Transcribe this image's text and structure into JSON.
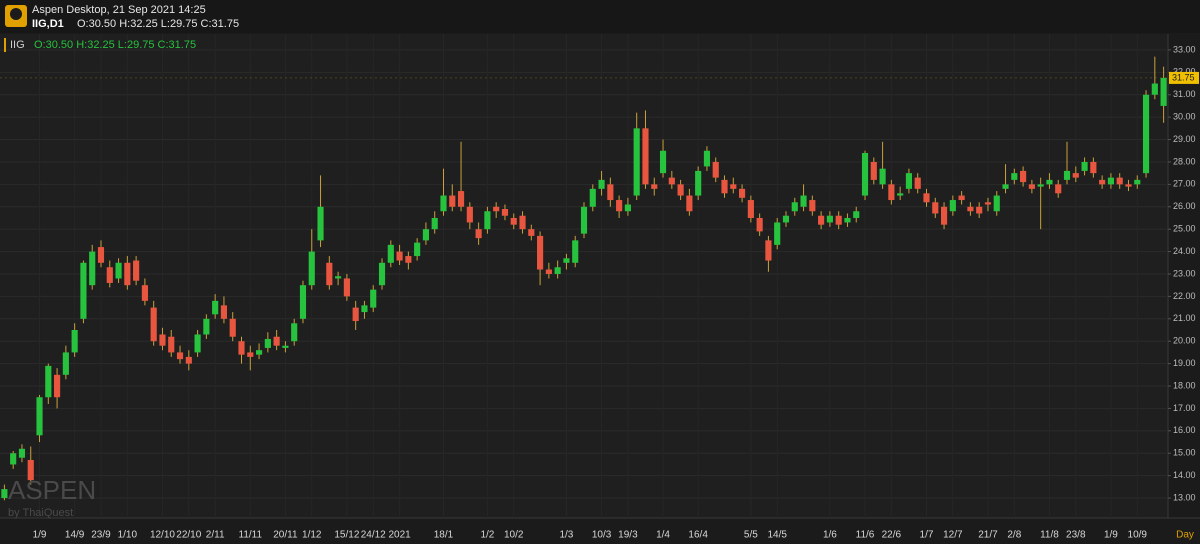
{
  "header": {
    "app_title": "Aspen Desktop, 21 Sep 2021 14:25",
    "symbol": "IIG,D1",
    "ohlc": "O:30.50 H:32.25 L:29.75 C:31.75"
  },
  "watermark": {
    "title": "ASPEN",
    "subtitle": "by ThaiQuest"
  },
  "chart_data": {
    "type": "candlestick",
    "title": "IIG",
    "subtitle": "O:30.50 H:32.25 L:29.75 C:31.75",
    "x_label": "Day",
    "up_color": "#27c23e",
    "down_color": "#e8563f",
    "wick_color": "#c9a23a",
    "grid": true,
    "ylim": [
      12.11,
      33.71
    ],
    "yticks": [
      {
        "value": 13,
        "label": "13.00"
      },
      {
        "value": 14,
        "label": "14.00"
      },
      {
        "value": 15,
        "label": "15.00"
      },
      {
        "value": 16,
        "label": "16.00"
      },
      {
        "value": 17,
        "label": "17.00"
      },
      {
        "value": 18,
        "label": "18.00"
      },
      {
        "value": 19,
        "label": "19.00"
      },
      {
        "value": 20,
        "label": "20.00"
      },
      {
        "value": 21,
        "label": "21.00"
      },
      {
        "value": 22,
        "label": "22.00"
      },
      {
        "value": 23,
        "label": "23.00"
      },
      {
        "value": 24,
        "label": "24.00"
      },
      {
        "value": 25,
        "label": "25.00"
      },
      {
        "value": 26,
        "label": "26.00"
      },
      {
        "value": 27,
        "label": "27.00"
      },
      {
        "value": 28,
        "label": "28.00"
      },
      {
        "value": 29,
        "label": "29.00"
      },
      {
        "value": 30,
        "label": "30.00"
      },
      {
        "value": 31,
        "label": "31.00"
      },
      {
        "value": 32,
        "label": "32.00"
      },
      {
        "value": 33,
        "label": "33.00"
      }
    ],
    "current_price": {
      "value": 31.75,
      "label": "31.75"
    },
    "categories": [
      null,
      null,
      null,
      null,
      "1/9",
      null,
      null,
      null,
      "14/9",
      null,
      null,
      "23/9",
      null,
      null,
      "1/10",
      null,
      null,
      null,
      "12/10",
      null,
      null,
      "22/10",
      null,
      null,
      "2/11",
      null,
      null,
      null,
      "11/11",
      null,
      null,
      null,
      "20/11",
      null,
      null,
      "1/12",
      null,
      null,
      null,
      "15/12",
      null,
      null,
      "24/12",
      null,
      null,
      "2021",
      null,
      null,
      null,
      null,
      "18/1",
      null,
      null,
      null,
      null,
      "1/2",
      null,
      null,
      "10/2",
      null,
      null,
      null,
      null,
      null,
      "1/3",
      null,
      null,
      null,
      "10/3",
      null,
      null,
      "19/3",
      null,
      null,
      null,
      "1/4",
      null,
      null,
      null,
      "16/4",
      null,
      null,
      null,
      null,
      null,
      "5/5",
      null,
      null,
      "14/5",
      null,
      null,
      null,
      null,
      null,
      "1/6",
      null,
      null,
      null,
      "11/6",
      null,
      null,
      "22/6",
      null,
      null,
      null,
      "1/7",
      null,
      null,
      "12/7",
      null,
      null,
      null,
      "21/7",
      null,
      null,
      "2/8",
      null,
      null,
      null,
      "11/8",
      null,
      null,
      "23/8",
      null,
      null,
      null,
      "1/9",
      null,
      null,
      "10/9",
      null,
      null,
      null
    ],
    "open": [
      13.0,
      14.5,
      14.8,
      14.7,
      15.8,
      17.5,
      18.5,
      18.5,
      19.5,
      21.0,
      22.5,
      24.2,
      23.3,
      22.8,
      23.5,
      23.6,
      22.5,
      21.5,
      20.3,
      20.2,
      19.5,
      19.3,
      19.5,
      20.3,
      21.2,
      21.6,
      21.0,
      20.0,
      19.5,
      19.4,
      19.7,
      20.2,
      19.7,
      20.0,
      21.0,
      22.5,
      24.5,
      23.5,
      22.8,
      22.8,
      21.5,
      21.3,
      21.5,
      22.5,
      23.5,
      24.0,
      23.8,
      23.8,
      24.5,
      25.0,
      25.8,
      26.5,
      26.7,
      26.0,
      25.0,
      25.0,
      26.0,
      25.9,
      25.5,
      25.6,
      25.0,
      24.7,
      23.2,
      23.0,
      23.5,
      23.5,
      24.8,
      26.0,
      26.8,
      27.0,
      26.3,
      25.8,
      26.5,
      29.5,
      27.0,
      27.5,
      27.3,
      27.0,
      26.5,
      26.5,
      27.8,
      28.0,
      27.2,
      27.0,
      26.8,
      26.3,
      25.5,
      24.5,
      24.3,
      25.3,
      25.8,
      26.0,
      26.3,
      25.6,
      25.3,
      25.6,
      25.3,
      25.5,
      26.5,
      28.0,
      27.0,
      27.0,
      26.5,
      26.8,
      27.3,
      26.6,
      26.2,
      26.0,
      25.8,
      26.5,
      26.0,
      26.0,
      26.2,
      25.8,
      26.8,
      27.2,
      27.6,
      27.0,
      26.9,
      27.0,
      27.0,
      27.2,
      27.5,
      27.6,
      28.0,
      27.2,
      27.0,
      27.3,
      27.0,
      27.0,
      27.5,
      31.0,
      30.5
    ],
    "high": [
      13.6,
      15.1,
      15.4,
      15.3,
      17.6,
      19.0,
      18.8,
      19.8,
      20.8,
      23.6,
      24.3,
      24.5,
      23.6,
      23.7,
      23.8,
      23.8,
      22.8,
      21.8,
      20.6,
      20.5,
      19.8,
      19.6,
      20.5,
      21.2,
      22.1,
      22.0,
      21.3,
      20.2,
      19.8,
      19.9,
      20.4,
      20.5,
      20.0,
      21.0,
      22.7,
      25.0,
      27.4,
      23.8,
      23.1,
      23.0,
      21.8,
      21.8,
      22.5,
      23.7,
      24.5,
      24.3,
      24.0,
      24.6,
      25.3,
      25.8,
      27.7,
      27.0,
      28.9,
      26.2,
      25.3,
      26.0,
      26.2,
      26.1,
      25.7,
      25.8,
      25.2,
      24.9,
      23.5,
      23.6,
      23.9,
      24.7,
      26.2,
      27.0,
      27.6,
      27.3,
      26.5,
      26.4,
      30.2,
      30.3,
      27.3,
      29.0,
      27.6,
      27.2,
      26.8,
      27.8,
      28.7,
      28.2,
      27.4,
      27.3,
      27.0,
      26.5,
      25.7,
      24.7,
      25.5,
      25.8,
      26.4,
      27.0,
      26.5,
      25.8,
      25.8,
      25.8,
      25.7,
      26.0,
      28.5,
      28.2,
      28.9,
      27.2,
      26.9,
      27.7,
      27.5,
      26.8,
      26.4,
      26.2,
      26.5,
      26.7,
      26.2,
      26.2,
      26.4,
      26.7,
      27.9,
      27.7,
      27.8,
      27.2,
      27.3,
      27.5,
      27.2,
      28.9,
      27.8,
      28.2,
      28.2,
      27.4,
      27.5,
      27.5,
      27.2,
      27.4,
      31.2,
      32.7,
      32.25
    ],
    "low": [
      12.9,
      14.3,
      14.6,
      13.6,
      15.5,
      17.2,
      17.0,
      18.3,
      19.3,
      20.8,
      22.3,
      23.3,
      22.4,
      22.6,
      22.3,
      22.5,
      21.6,
      19.8,
      19.6,
      19.3,
      19.0,
      18.7,
      19.3,
      20.1,
      21.0,
      20.8,
      20.0,
      19.0,
      18.7,
      19.2,
      19.5,
      19.6,
      19.5,
      19.8,
      20.8,
      22.3,
      24.2,
      22.3,
      22.5,
      21.8,
      20.5,
      21.0,
      21.3,
      22.3,
      23.3,
      23.4,
      23.2,
      23.6,
      24.3,
      24.8,
      25.6,
      25.8,
      25.8,
      25.0,
      24.3,
      24.8,
      25.5,
      25.4,
      25.0,
      24.8,
      24.5,
      22.5,
      22.8,
      22.8,
      23.2,
      23.3,
      24.6,
      25.8,
      26.5,
      26.0,
      25.5,
      25.6,
      26.3,
      26.8,
      26.5,
      27.3,
      26.8,
      26.3,
      25.6,
      26.3,
      27.6,
      27.1,
      26.4,
      26.6,
      26.2,
      25.3,
      24.7,
      23.1,
      24.1,
      25.1,
      25.6,
      25.8,
      25.6,
      25.0,
      25.1,
      25.0,
      25.1,
      25.3,
      26.3,
      27.0,
      26.8,
      26.1,
      26.3,
      26.6,
      26.6,
      26.0,
      25.5,
      25.0,
      25.6,
      26.1,
      25.6,
      25.5,
      25.8,
      25.6,
      26.6,
      27.0,
      26.9,
      26.6,
      25.0,
      26.8,
      26.4,
      27.0,
      27.1,
      27.4,
      27.3,
      26.8,
      26.8,
      26.8,
      26.7,
      26.8,
      27.3,
      30.8,
      29.75
    ],
    "close": [
      13.4,
      15.0,
      15.2,
      13.8,
      17.5,
      18.9,
      17.5,
      19.5,
      20.5,
      23.5,
      24.0,
      23.5,
      22.6,
      23.5,
      22.5,
      22.7,
      21.8,
      20.0,
      19.8,
      19.5,
      19.2,
      19.0,
      20.3,
      21.0,
      21.8,
      21.0,
      20.2,
      19.4,
      19.3,
      19.6,
      20.1,
      19.8,
      19.8,
      20.8,
      22.5,
      24.0,
      26.0,
      22.5,
      22.9,
      22.0,
      20.9,
      21.6,
      22.3,
      23.5,
      24.3,
      23.6,
      23.5,
      24.4,
      25.0,
      25.5,
      26.5,
      26.0,
      26.0,
      25.3,
      24.6,
      25.8,
      25.8,
      25.6,
      25.2,
      25.0,
      24.7,
      23.2,
      23.0,
      23.3,
      23.7,
      24.5,
      26.0,
      26.8,
      27.2,
      26.3,
      25.8,
      26.1,
      29.5,
      27.0,
      26.8,
      28.5,
      27.0,
      26.5,
      25.8,
      27.6,
      28.5,
      27.3,
      26.6,
      26.8,
      26.4,
      25.5,
      24.9,
      23.6,
      25.3,
      25.6,
      26.2,
      26.5,
      25.8,
      25.2,
      25.6,
      25.2,
      25.5,
      25.8,
      28.4,
      27.2,
      27.7,
      26.3,
      26.6,
      27.5,
      26.8,
      26.2,
      25.7,
      25.2,
      26.3,
      26.3,
      25.8,
      25.7,
      26.1,
      26.5,
      27.0,
      27.5,
      27.1,
      26.8,
      27.0,
      27.2,
      26.6,
      27.6,
      27.3,
      28.0,
      27.5,
      27.0,
      27.3,
      27.0,
      26.9,
      27.2,
      31.0,
      31.5,
      31.75
    ]
  }
}
